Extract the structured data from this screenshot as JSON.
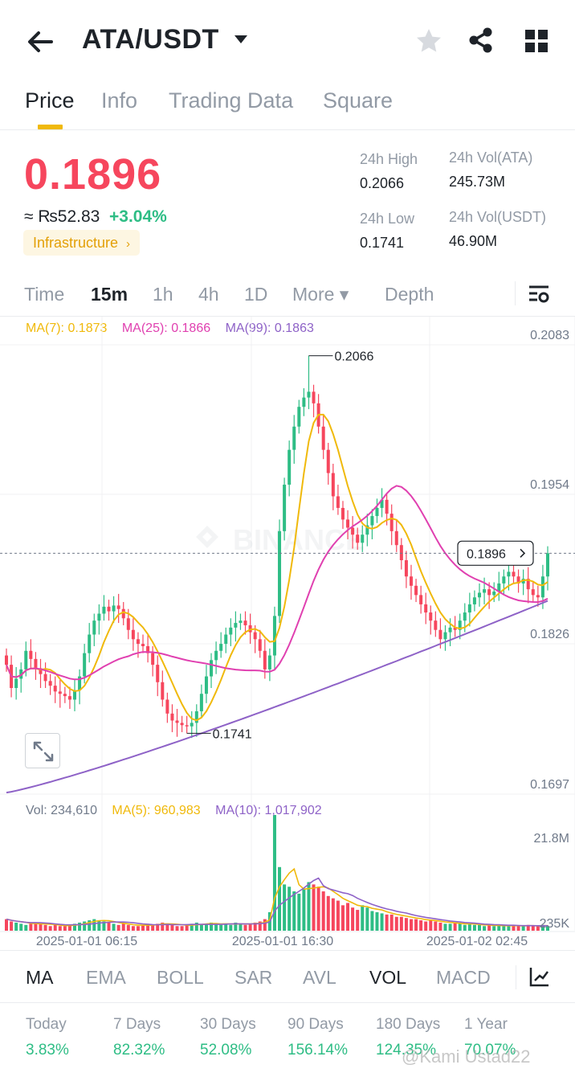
{
  "header": {
    "pair": "ATA/USDT",
    "icons": [
      "back-arrow-icon",
      "caret-down-icon",
      "star-icon",
      "share-icon",
      "grid-icon"
    ]
  },
  "tabs": [
    "Price",
    "Info",
    "Trading Data",
    "Square"
  ],
  "price": {
    "last": "0.1896",
    "fiat": "≈ ₨52.83",
    "change": "+3.04%",
    "tag": "Infrastructure",
    "high_label": "24h High",
    "high": "0.2066",
    "low_label": "24h Low",
    "low": "0.1741",
    "vol_base_label": "24h Vol(ATA)",
    "vol_base": "245.73M",
    "vol_quote_label": "24h Vol(USDT)",
    "vol_quote": "46.90M"
  },
  "timeframes": [
    "Time",
    "15m",
    "1h",
    "4h",
    "1D",
    "More ▾",
    "Depth"
  ],
  "active_timeframe": "15m",
  "ma_legend": {
    "ma7": "MA(7): 0.1873",
    "ma25": "MA(25): 0.1866",
    "ma99": "MA(99): 0.1863"
  },
  "vol_legend": {
    "vol": "Vol: 234,610",
    "ma5": "MA(5): 960,983",
    "ma10": "MA(10): 1,017,902"
  },
  "colors": {
    "up": "#2ebd85",
    "down": "#f6465d",
    "ma7": "#f0b90b",
    "ma25": "#e040b0",
    "ma99": "#8e62c7",
    "accent": "#f0b90b"
  },
  "watermark_logo": "BINANCE",
  "chart_data": {
    "type": "candlestick",
    "price_axis_ticks": [
      "0.2083",
      "0.1954",
      "0.1826",
      "0.1697"
    ],
    "volume_axis_ticks": [
      "21.8M",
      "235K"
    ],
    "x_tick_labels": [
      "2025-01-01 06:15",
      "2025-01-01 16:30",
      "2025-01-02 02:45"
    ],
    "high_marker": "0.2066",
    "low_marker": "0.1741",
    "current_price_tag": "0.1896",
    "close": [
      0.18,
      0.178,
      0.1788,
      0.1796,
      0.1812,
      0.1805,
      0.1797,
      0.1792,
      0.1786,
      0.1782,
      0.1777,
      0.1775,
      0.1773,
      0.177,
      0.1778,
      0.179,
      0.181,
      0.1826,
      0.1838,
      0.1844,
      0.185,
      0.1846,
      0.1851,
      0.1848,
      0.184,
      0.183,
      0.1822,
      0.1818,
      0.1816,
      0.181,
      0.18,
      0.1785,
      0.177,
      0.1758,
      0.1752,
      0.175,
      0.1748,
      0.1747,
      0.175,
      0.176,
      0.1775,
      0.179,
      0.1804,
      0.1812,
      0.1818,
      0.1826,
      0.1832,
      0.1836,
      0.1838,
      0.1834,
      0.1828,
      0.1822,
      0.1812,
      0.1796,
      0.1808,
      0.1842,
      0.1915,
      0.1955,
      0.1985,
      0.2005,
      0.2022,
      0.203,
      0.2035,
      0.2025,
      0.2005,
      0.1985,
      0.1965,
      0.1945,
      0.1935,
      0.1925,
      0.1918,
      0.1912,
      0.1905,
      0.1912,
      0.192,
      0.1928,
      0.1935,
      0.1942,
      0.193,
      0.1915,
      0.1903,
      0.189,
      0.1876,
      0.1868,
      0.186,
      0.1852,
      0.1845,
      0.1838,
      0.183,
      0.1822,
      0.1828,
      0.1832,
      0.183,
      0.1838,
      0.1845,
      0.1852,
      0.1858,
      0.1862,
      0.1865,
      0.186,
      0.1863,
      0.187,
      0.1876,
      0.188,
      0.1876,
      0.187,
      0.1874,
      0.1865,
      0.186,
      0.1858,
      0.1876,
      0.1896
    ],
    "volume": [
      0.1,
      0.08,
      0.07,
      0.06,
      0.05,
      0.06,
      0.07,
      0.06,
      0.05,
      0.04,
      0.05,
      0.04,
      0.04,
      0.05,
      0.06,
      0.07,
      0.08,
      0.09,
      0.1,
      0.09,
      0.08,
      0.07,
      0.06,
      0.05,
      0.06,
      0.05,
      0.04,
      0.04,
      0.05,
      0.06,
      0.05,
      0.06,
      0.07,
      0.06,
      0.05,
      0.04,
      0.04,
      0.05,
      0.06,
      0.07,
      0.05,
      0.06,
      0.07,
      0.06,
      0.05,
      0.06,
      0.05,
      0.07,
      0.06,
      0.05,
      0.06,
      0.07,
      0.08,
      0.1,
      0.16,
      1.0,
      0.55,
      0.4,
      0.38,
      0.34,
      0.32,
      0.36,
      0.42,
      0.4,
      0.38,
      0.34,
      0.3,
      0.28,
      0.26,
      0.22,
      0.24,
      0.2,
      0.18,
      0.22,
      0.2,
      0.17,
      0.16,
      0.15,
      0.14,
      0.14,
      0.12,
      0.12,
      0.11,
      0.1,
      0.1,
      0.09,
      0.08,
      0.09,
      0.08,
      0.07,
      0.06,
      0.06,
      0.07,
      0.06,
      0.05,
      0.06,
      0.05,
      0.05,
      0.04,
      0.05,
      0.04,
      0.05,
      0.04,
      0.04,
      0.05,
      0.04,
      0.04,
      0.05,
      0.04,
      0.04,
      0.05,
      0.04
    ]
  },
  "indicators": [
    "MA",
    "EMA",
    "BOLL",
    "SAR",
    "AVL",
    "VOL",
    "MACD"
  ],
  "performance": {
    "labels": [
      "Today",
      "7 Days",
      "30 Days",
      "90 Days",
      "180 Days",
      "1 Year"
    ],
    "values": [
      "3.83%",
      "82.32%",
      "52.08%",
      "156.14%",
      "124.35%",
      "70.07%"
    ]
  },
  "watermark": "@Kami Ustad22"
}
